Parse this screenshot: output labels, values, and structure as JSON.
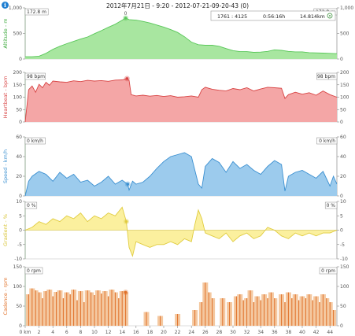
{
  "title": "2012年7月21日 - 9:20 - 2012-07-21-09-20-43 (0)",
  "info_icon": "info-icon",
  "summary": {
    "range": "1761 : 4125",
    "duration": "0:56:16h",
    "distance": "14.814km",
    "icon": "target-icon"
  },
  "chart_data": [
    {
      "type": "area",
      "name": "altitude",
      "ylabel": "Altitude - m",
      "color": "#59c759",
      "fill": "#a8e6a0",
      "label_color": "#3aa83a",
      "ylim": [
        0,
        1000
      ],
      "yticks_left": [
        "1,000",
        "500",
        "0"
      ],
      "yticks_right": [
        "1,000",
        "500",
        "0"
      ],
      "value_box_left": "172.8 m",
      "value_box_right": "172.8 m",
      "marker_label": "0",
      "marker": [
        14.5,
        800
      ],
      "x": [
        0,
        1,
        2,
        3,
        4,
        5,
        6,
        7,
        8,
        9,
        10,
        11,
        12,
        13,
        14,
        14.5,
        15,
        16,
        17,
        18,
        19,
        20,
        21,
        22,
        23,
        24,
        25,
        26,
        27,
        28,
        29,
        30,
        31,
        32,
        33,
        34,
        35,
        36,
        37,
        38,
        39,
        40,
        41,
        42,
        43,
        44,
        45
      ],
      "y": [
        45,
        45,
        55,
        110,
        190,
        250,
        300,
        345,
        390,
        430,
        495,
        555,
        620,
        680,
        760,
        800,
        770,
        760,
        735,
        705,
        665,
        625,
        575,
        520,
        435,
        330,
        280,
        270,
        270,
        250,
        205,
        165,
        145,
        145,
        130,
        135,
        150,
        180,
        170,
        150,
        140,
        140,
        125,
        120,
        115,
        110,
        105
      ]
    },
    {
      "type": "area",
      "name": "heartbeat",
      "ylabel": "Heartbeat - bpm",
      "color": "#d84444",
      "fill": "#f4a6a6",
      "label_color": "#d84444",
      "ylim": [
        0,
        200
      ],
      "yticks_left": [
        "200",
        "150",
        "100",
        "50",
        "0"
      ],
      "yticks_right": [
        "200",
        "150",
        "100",
        "50",
        "0"
      ],
      "value_box_left": "98 bpm",
      "value_box_right": "98 bpm",
      "marker": [
        14.7,
        175
      ],
      "x": [
        0,
        0.5,
        1,
        1.5,
        2,
        2.5,
        3,
        3.5,
        4,
        5,
        6,
        7,
        8,
        9,
        10,
        11,
        12,
        13,
        14,
        14.7,
        15,
        15.3,
        16,
        17,
        18,
        19,
        20,
        21,
        22,
        23,
        24,
        25,
        25.5,
        26,
        27,
        28,
        29,
        30,
        31,
        32,
        33,
        34,
        35,
        36,
        37,
        37.5,
        38,
        39,
        40,
        41,
        42,
        43,
        44,
        45
      ],
      "y": [
        0,
        130,
        145,
        120,
        152,
        138,
        160,
        148,
        165,
        162,
        160,
        166,
        163,
        168,
        165,
        167,
        164,
        169,
        170,
        175,
        168,
        110,
        105,
        108,
        104,
        107,
        103,
        106,
        100,
        102,
        105,
        100,
        130,
        140,
        132,
        128,
        125,
        135,
        130,
        138,
        125,
        133,
        140,
        138,
        136,
        95,
        110,
        120,
        112,
        118,
        108,
        125,
        110,
        100
      ]
    },
    {
      "type": "area",
      "name": "speed",
      "ylabel": "Speed - km/h",
      "color": "#3a8fd0",
      "fill": "#9ccbed",
      "label_color": "#3a8fd0",
      "ylim": [
        0,
        60
      ],
      "yticks_left": [
        "60",
        "40",
        "20",
        "0"
      ],
      "yticks_right": [
        "60",
        "40",
        "20",
        "0"
      ],
      "value_box_left": "0 km/h",
      "value_box_right": "0 km/h",
      "marker": [
        14.8,
        12
      ],
      "x": [
        0,
        0.5,
        1,
        2,
        3,
        4,
        5,
        6,
        7,
        8,
        9,
        10,
        11,
        12,
        13,
        14,
        14.8,
        15,
        15.5,
        16,
        17,
        18,
        19,
        20,
        21,
        22,
        23,
        24,
        25,
        25.5,
        26,
        27,
        28,
        29,
        30,
        31,
        32,
        33,
        34,
        35,
        36,
        37,
        37.5,
        38,
        39,
        40,
        41,
        42,
        43,
        44,
        44.5,
        45
      ],
      "y": [
        0,
        15,
        20,
        25,
        22,
        15,
        24,
        18,
        22,
        14,
        16,
        10,
        14,
        20,
        12,
        16,
        12,
        6,
        15,
        12,
        14,
        20,
        28,
        35,
        40,
        42,
        44,
        40,
        12,
        8,
        30,
        38,
        34,
        24,
        35,
        28,
        32,
        26,
        22,
        30,
        36,
        32,
        5,
        20,
        24,
        26,
        22,
        18,
        25,
        10,
        20,
        12
      ]
    },
    {
      "type": "area",
      "name": "gradient",
      "ylabel": "Gradient - %",
      "color": "#e0cc40",
      "fill": "#fbf09e",
      "label_color": "#d8c437",
      "ylim": [
        -10,
        10
      ],
      "yticks_left": [
        "10",
        "5",
        "0",
        "-5",
        "-10"
      ],
      "yticks_right": [
        "10",
        "5",
        "0",
        "-5",
        "-10"
      ],
      "value_box_left": "0 %",
      "value_box_right": "0 %",
      "marker": [
        14.6,
        3
      ],
      "x": [
        0,
        1,
        2,
        3,
        4,
        5,
        6,
        7,
        8,
        9,
        10,
        11,
        12,
        13,
        14,
        14.6,
        15,
        15.5,
        16,
        17,
        18,
        19,
        20,
        21,
        22,
        23,
        24,
        24.5,
        25,
        25.5,
        26,
        27,
        28,
        29,
        30,
        31,
        32,
        33,
        34,
        35,
        36,
        37,
        38,
        39,
        40,
        41,
        42,
        43,
        44,
        45
      ],
      "y": [
        0,
        1,
        3,
        2,
        4,
        3,
        5,
        4,
        6,
        3,
        5,
        4,
        6,
        5,
        8,
        3,
        -6,
        -9,
        -4,
        -5,
        -6,
        -5,
        -5,
        -4,
        -5,
        -3,
        -4,
        2,
        7,
        4,
        -1,
        -2,
        -3,
        -1,
        -4,
        -2,
        -1,
        -3,
        -2,
        1,
        0,
        -2,
        -3,
        -1,
        -2,
        -1,
        -2,
        -1,
        -1,
        0
      ]
    },
    {
      "type": "bar",
      "name": "cadence",
      "ylabel": "Cadence - rpm",
      "color": "#e07028",
      "fill": "#f4c8a0",
      "label_color": "#e07028",
      "ylim": [
        0,
        150
      ],
      "yticks_left": [
        "150",
        "100",
        "50",
        "0"
      ],
      "yticks_right": [
        "150",
        "100",
        "50",
        "0"
      ],
      "value_box_left": "0 rpm",
      "value_box_right": "0 rpm",
      "marker": [
        14.5,
        85
      ],
      "x": [
        0.5,
        1,
        1.5,
        2,
        2.5,
        3,
        3.5,
        4,
        4.5,
        5,
        5.5,
        6,
        6.5,
        7,
        7.5,
        8,
        8.5,
        9,
        9.5,
        10,
        10.5,
        11,
        11.5,
        12,
        12.5,
        13,
        13.5,
        14,
        14.5,
        17.5,
        19.5,
        22,
        24.5,
        25.5,
        26,
        26.5,
        27,
        28.5,
        29.5,
        30.5,
        31,
        31.5,
        32,
        32.5,
        33,
        33.5,
        34,
        34.5,
        35,
        35.5,
        36,
        37,
        37.5,
        38,
        38.5,
        39,
        39.5,
        40,
        40.5,
        41,
        41.5,
        42,
        42.5,
        43,
        43.5,
        44,
        44.5
      ],
      "y": [
        80,
        95,
        90,
        85,
        70,
        88,
        92,
        75,
        86,
        90,
        70,
        85,
        80,
        92,
        65,
        88,
        60,
        90,
        85,
        78,
        90,
        82,
        88,
        75,
        92,
        85,
        70,
        88,
        85,
        35,
        25,
        30,
        40,
        60,
        110,
        85,
        70,
        70,
        60,
        75,
        80,
        65,
        70,
        90,
        60,
        75,
        65,
        80,
        70,
        85,
        70,
        80,
        60,
        85,
        70,
        80,
        65,
        75,
        70,
        80,
        65,
        75,
        60,
        80,
        70,
        60,
        40
      ],
      "xticks": [
        "0 km",
        "2",
        "4",
        "6",
        "8",
        "10",
        "12",
        "14",
        "16",
        "18",
        "20",
        "22",
        "24",
        "26",
        "28",
        "30",
        "32",
        "34",
        "36",
        "38",
        "40",
        "42",
        "44"
      ],
      "xlim": [
        0,
        45
      ]
    }
  ]
}
